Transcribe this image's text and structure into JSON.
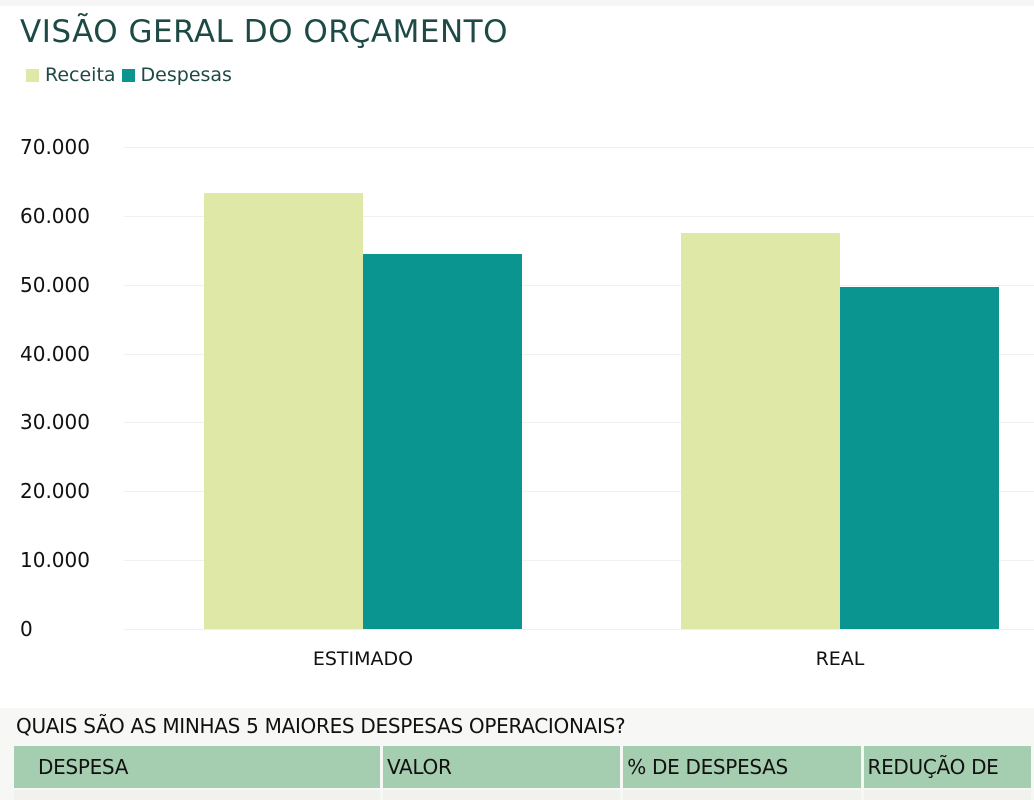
{
  "title": "VISÃO GERAL DO ORÇAMENTO",
  "legend": [
    {
      "label": "Receita",
      "color": "#e0e8a8"
    },
    {
      "label": "Despesas",
      "color": "#0b9590"
    }
  ],
  "chart_data": {
    "type": "bar",
    "title": "VISÃO GERAL DO ORÇAMENTO",
    "categories": [
      "ESTIMADO",
      "REAL"
    ],
    "series": [
      {
        "name": "Receita",
        "color": "#e0e8a8",
        "values": [
          63300,
          57500
        ]
      },
      {
        "name": "Despesas",
        "color": "#0b9590",
        "values": [
          54500,
          49700
        ]
      }
    ],
    "xlabel": "",
    "ylabel": "",
    "ylim": [
      0,
      70000
    ],
    "yticks": [
      "0",
      "10.000",
      "20.000",
      "30.000",
      "40.000",
      "50.000",
      "60.000",
      "70.000"
    ],
    "grid": true,
    "legend_position": "top-left"
  },
  "section": {
    "question": "QUAIS SÃO AS MINHAS 5 MAIORES DESPESAS OPERACIONAIS?",
    "table": {
      "columns": [
        "DESPESA",
        "VALOR",
        "% DE DESPESAS",
        "REDUÇÃO DE"
      ]
    }
  }
}
